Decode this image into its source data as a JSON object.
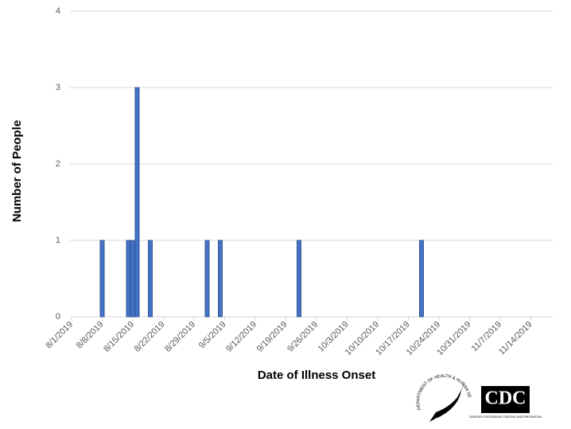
{
  "chart_data": {
    "type": "bar",
    "x_label": "Date of Illness Onset",
    "y_label": "Number of People",
    "x": [
      "2019-08-08",
      "2019-08-14",
      "2019-08-15",
      "2019-08-16",
      "2019-08-19",
      "2019-09-01",
      "2019-09-04",
      "2019-09-22",
      "2019-10-20"
    ],
    "values": [
      1,
      1,
      1,
      3,
      1,
      1,
      1,
      1,
      1
    ],
    "color": "#4472c4",
    "xlim": [
      "2019-08-01",
      "2019-11-19"
    ],
    "xticks": [
      {
        "value": "2019-08-01",
        "label": "8/1/2019"
      },
      {
        "value": "2019-08-08",
        "label": "8/8/2019"
      },
      {
        "value": "2019-08-15",
        "label": "8/15/2019"
      },
      {
        "value": "2019-08-22",
        "label": "8/22/2019"
      },
      {
        "value": "2019-08-29",
        "label": "8/29/2019"
      },
      {
        "value": "2019-09-05",
        "label": "9/5/2019"
      },
      {
        "value": "2019-09-12",
        "label": "9/12/2019"
      },
      {
        "value": "2019-09-19",
        "label": "9/19/2019"
      },
      {
        "value": "2019-09-26",
        "label": "9/26/2019"
      },
      {
        "value": "2019-10-03",
        "label": "10/3/2019"
      },
      {
        "value": "2019-10-10",
        "label": "10/10/2019"
      },
      {
        "value": "2019-10-17",
        "label": "10/17/2019"
      },
      {
        "value": "2019-10-24",
        "label": "10/24/2019"
      },
      {
        "value": "2019-10-31",
        "label": "10/31/2019"
      },
      {
        "value": "2019-11-07",
        "label": "11/7/2019"
      },
      {
        "value": "2019-11-14",
        "label": "11/14/2019"
      }
    ],
    "ylim": [
      0,
      4
    ],
    "yticks": [
      0,
      1,
      2,
      3,
      4
    ],
    "grid": true,
    "hhs_logo_text": "DEPARTMENT OF HEALTH & HUMAN SERVICES USA",
    "cdc_logo_text": "CDC",
    "cdc_logo_subtext": "CENTERS FOR DISEASE CONTROL AND PREVENTION"
  }
}
